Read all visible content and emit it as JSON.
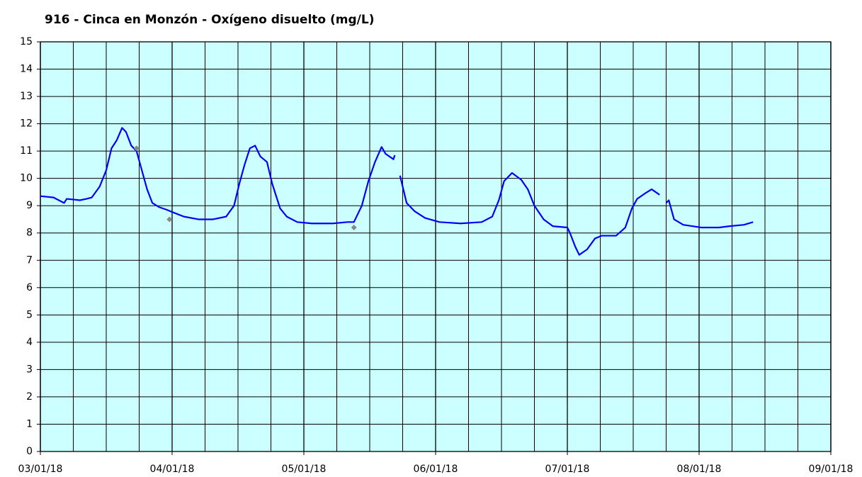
{
  "chart_data": {
    "type": "line",
    "title": "916 - Cinca en Monzón - Oxígeno disuelto (mg/L)",
    "series": [
      {
        "color": "#0000ff",
        "style": "line",
        "x": [
          0,
          0.1,
          0.18,
          0.2,
          0.3,
          0.35,
          0.39,
          0.45,
          0.5,
          0.54,
          0.58,
          0.62,
          0.65,
          0.69,
          0.73,
          0.77,
          0.81,
          0.85,
          0.9,
          0.96,
          1.01,
          1.09,
          1.2,
          1.31,
          1.41,
          1.47,
          1.51,
          1.55,
          1.59,
          1.63,
          1.67,
          1.72,
          1.76,
          1.82,
          1.87,
          1.95,
          2.06,
          2.22,
          2.33,
          2.38,
          2.44,
          2.49,
          2.54,
          2.59,
          2.62,
          2.68,
          2.69,
          2.71,
          2.73,
          2.78,
          2.84,
          2.92,
          3.03,
          3.19,
          3.35,
          3.43,
          3.48,
          3.52,
          3.58,
          3.65,
          3.7,
          3.75,
          3.82,
          3.89,
          4.0,
          4.02,
          4.06,
          4.09,
          4.15,
          4.21,
          4.26,
          4.37,
          4.44,
          4.49,
          4.53,
          4.59,
          4.64,
          4.7,
          4.72,
          4.75,
          4.77,
          4.81,
          4.88,
          5.02,
          5.15,
          5.23,
          5.34,
          5.41
        ],
        "values": [
          9.35,
          9.3,
          9.1,
          9.25,
          9.2,
          9.25,
          9.3,
          9.7,
          10.3,
          11.1,
          11.4,
          11.85,
          11.7,
          11.2,
          11.0,
          10.3,
          9.6,
          9.1,
          8.95,
          8.85,
          8.75,
          8.6,
          8.5,
          8.5,
          8.6,
          9.0,
          9.8,
          10.5,
          11.1,
          11.2,
          10.8,
          10.6,
          9.8,
          8.9,
          8.6,
          8.4,
          8.35,
          8.35,
          8.4,
          8.4,
          9.0,
          9.9,
          10.6,
          11.15,
          10.9,
          10.7,
          10.85,
          null,
          10.1,
          9.1,
          8.8,
          8.55,
          8.4,
          8.35,
          8.4,
          8.6,
          9.2,
          9.9,
          10.2,
          9.95,
          9.6,
          9.0,
          8.5,
          8.25,
          8.2,
          8.0,
          7.5,
          7.2,
          7.4,
          7.8,
          7.9,
          7.9,
          8.2,
          8.9,
          9.25,
          9.45,
          9.6,
          9.4,
          null,
          9.1,
          9.2,
          8.5,
          8.3,
          8.2,
          8.2,
          8.25,
          8.3,
          8.4
        ]
      },
      {
        "color": "#888888",
        "style": "markers",
        "x": [
          0.73,
          0.98,
          2.38
        ],
        "values": [
          11.1,
          8.5,
          8.2
        ]
      }
    ],
    "xlim": [
      0,
      6
    ],
    "xticks": [
      {
        "value": 0,
        "label": "03/01/18"
      },
      {
        "value": 1,
        "label": "04/01/18"
      },
      {
        "value": 2,
        "label": "05/01/18"
      },
      {
        "value": 3,
        "label": "06/01/18"
      },
      {
        "value": 4,
        "label": "07/01/18"
      },
      {
        "value": 5,
        "label": "08/01/18"
      },
      {
        "value": 6,
        "label": "09/01/18"
      }
    ],
    "x_minor_divisions": 4,
    "ylim": [
      0,
      15
    ],
    "yticks": [
      0,
      1,
      2,
      3,
      4,
      5,
      6,
      7,
      8,
      9,
      10,
      11,
      12,
      13,
      14,
      15
    ],
    "grid": true,
    "background": "#ccffff"
  }
}
